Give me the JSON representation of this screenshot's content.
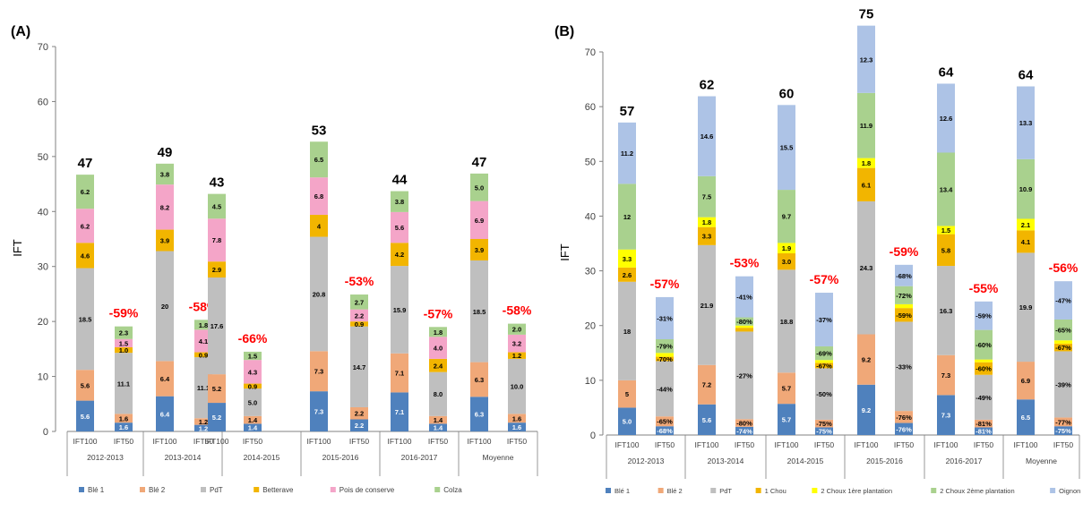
{
  "colors": {
    "Blé 1": "#4f81bd",
    "Blé 2": "#f0a878",
    "PdT": "#bfbfbf",
    "Betterave": "#f2b500",
    "1 Chou": "#f2b500",
    "Pois de conserve": "#f4a5c8",
    "2 Choux 1ère plantation": "#ffff00",
    "Colza": "#a9d18e",
    "2 Choux 2ème plantation": "#a9d18e",
    "Oignon": "#adc3e6",
    "reduction": "#ff0000"
  },
  "chart_data": [
    {
      "type": "bar",
      "stacked": true,
      "panel_label": "(A)",
      "ylabel": "IFT",
      "ylim": [
        0,
        70
      ],
      "yticks": [
        0,
        10,
        20,
        30,
        40,
        50,
        60,
        70
      ],
      "grid": false,
      "legend_position": "bottom",
      "groups": [
        "2012-2013",
        "2013-2014",
        "2014-2015",
        "2015-2016",
        "2016-2017",
        "Moyenne"
      ],
      "bar_types": [
        "IFT100",
        "IFT50"
      ],
      "series_names": [
        "Blé 1",
        "Blé 2",
        "PdT",
        "Betterave",
        "Pois de conserve",
        "Colza"
      ],
      "bars": [
        {
          "group": 0,
          "type": "IFT100",
          "values": [
            5.6,
            5.6,
            18.5,
            4.6,
            6.2,
            6.2
          ],
          "labels": [
            "5.6",
            "5.6",
            "18.5",
            "4.6",
            "6.2",
            "6.2"
          ],
          "total": "47"
        },
        {
          "group": 0,
          "type": "IFT50",
          "values": [
            1.6,
            1.6,
            11.1,
            1.0,
            1.5,
            2.3
          ],
          "labels": [
            "1.6",
            "1.6",
            "11.1",
            "1.0",
            "1.5",
            "2.3"
          ],
          "reduction": "-59%"
        },
        {
          "group": 1,
          "type": "IFT100",
          "values": [
            6.4,
            6.4,
            20,
            3.9,
            8.2,
            3.8
          ],
          "labels": [
            "6.4",
            "6.4",
            "20",
            "3.9",
            "8.2",
            "3.8"
          ],
          "total": "49"
        },
        {
          "group": 1,
          "type": "IFT50",
          "values": [
            1.2,
            1.2,
            11.1,
            0.9,
            4.1,
            1.8
          ],
          "labels": [
            "1.2",
            "1.2",
            "11.1",
            "0.9",
            "4.1",
            "1.8"
          ],
          "reduction": "-58%"
        },
        {
          "group": 2,
          "type": "IFT100",
          "values": [
            5.2,
            5.2,
            17.6,
            2.9,
            7.8,
            4.5
          ],
          "labels": [
            "5.2",
            "5.2",
            "17.6",
            "2.9",
            "7.8",
            "4.5"
          ],
          "total": "43"
        },
        {
          "group": 2,
          "type": "IFT50",
          "values": [
            1.4,
            1.4,
            5.0,
            0.9,
            4.3,
            1.5
          ],
          "labels": [
            "1.4",
            "1.4",
            "5.0",
            "0.9",
            "4.3",
            "1.5"
          ],
          "reduction": "-66%"
        },
        {
          "group": 3,
          "type": "IFT100",
          "values": [
            7.3,
            7.3,
            20.8,
            4,
            6.8,
            6.5
          ],
          "labels": [
            "7.3",
            "7.3",
            "20.8",
            "4",
            "6.8",
            "6.5"
          ],
          "total": "53"
        },
        {
          "group": 3,
          "type": "IFT50",
          "values": [
            2.2,
            2.2,
            14.7,
            0.9,
            2.2,
            2.7
          ],
          "labels": [
            "2.2",
            "2.2",
            "14.7",
            "0.9",
            "2.2",
            "2.7"
          ],
          "reduction": "-53%"
        },
        {
          "group": 4,
          "type": "IFT100",
          "values": [
            7.1,
            7.1,
            15.9,
            4.2,
            5.6,
            3.8
          ],
          "labels": [
            "7.1",
            "7.1",
            "15.9",
            "4.2",
            "5.6",
            "3.8"
          ],
          "total": "44"
        },
        {
          "group": 4,
          "type": "IFT50",
          "values": [
            1.4,
            1.4,
            8.0,
            2.4,
            4.0,
            1.8
          ],
          "labels": [
            "1.4",
            "1.4",
            "8.0",
            "2.4",
            "4.0",
            "1.8"
          ],
          "reduction": "-57%"
        },
        {
          "group": 5,
          "type": "IFT100",
          "values": [
            6.3,
            6.3,
            18.5,
            3.9,
            6.9,
            5.0
          ],
          "labels": [
            "6.3",
            "6.3",
            "18.5",
            "3.9",
            "6.9",
            "5.0"
          ],
          "total": "47"
        },
        {
          "group": 5,
          "type": "IFT50",
          "values": [
            1.6,
            1.6,
            10.0,
            1.2,
            3.2,
            2.0
          ],
          "labels": [
            "1.6",
            "1.6",
            "10.0",
            "1.2",
            "3.2",
            "2.0"
          ],
          "reduction": "-58%"
        }
      ]
    },
    {
      "type": "bar",
      "stacked": true,
      "panel_label": "(B)",
      "ylabel": "IFT",
      "ylim": [
        0,
        70
      ],
      "yticks": [
        0,
        10,
        20,
        30,
        40,
        50,
        60,
        70
      ],
      "grid": false,
      "legend_position": "bottom",
      "groups": [
        "2012-2013",
        "2013-2014",
        "2014-2015",
        "2015-2016",
        "2016-2017",
        "Moyenne"
      ],
      "bar_types": [
        "IFT100",
        "IFT50"
      ],
      "series_names": [
        "Blé 1",
        "Blé 2",
        "PdT",
        "1 Chou",
        "2 Choux 1ère plantation",
        "2 Choux 2ème plantation",
        "Oignon"
      ],
      "bars": [
        {
          "group": 0,
          "type": "IFT100",
          "values": [
            5.0,
            5,
            18,
            2.6,
            3.3,
            12,
            11.2
          ],
          "labels": [
            "5.0",
            "5",
            "18",
            "2.6",
            "3.3",
            "12",
            "11.2"
          ],
          "total": "57"
        },
        {
          "group": 0,
          "type": "IFT50",
          "values": [
            1.6,
            1.8,
            10.1,
            0.8,
            0.7,
            2.5,
            7.7
          ],
          "labels": [
            "-68%",
            "-65%",
            "-44%",
            "-70%",
            "",
            "-79%",
            "-31%"
          ],
          "reduction": "-57%"
        },
        {
          "group": 1,
          "type": "IFT100",
          "values": [
            5.6,
            7.2,
            21.9,
            3.3,
            1.8,
            7.5,
            14.6
          ],
          "labels": [
            "5.6",
            "7.2",
            "21.9",
            "3.3",
            "1.8",
            "7.5",
            "14.6"
          ],
          "total": "62"
        },
        {
          "group": 1,
          "type": "IFT50",
          "values": [
            1.5,
            1.4,
            16.0,
            0.7,
            0.4,
            1.5,
            7.5
          ],
          "labels": [
            "-74%",
            "-80%",
            "-27%",
            "",
            "",
            "-80%",
            "-41%"
          ],
          "reduction": "-53%"
        },
        {
          "group": 2,
          "type": "IFT100",
          "values": [
            5.7,
            5.7,
            18.8,
            3.0,
            1.9,
            9.7,
            15.5
          ],
          "labels": [
            "5.7",
            "5.7",
            "18.8",
            "3.0",
            "1.9",
            "9.7",
            "15.5"
          ],
          "total": "60"
        },
        {
          "group": 2,
          "type": "IFT50",
          "values": [
            1.4,
            1.4,
            9.4,
            1.0,
            0.5,
            2.5,
            9.8
          ],
          "labels": [
            "-75%",
            "-75%",
            "-50%",
            "-67%",
            "",
            "-69%",
            "-37%"
          ],
          "reduction": "-57%"
        },
        {
          "group": 3,
          "type": "IFT100",
          "values": [
            9.2,
            9.2,
            24.3,
            6.1,
            1.8,
            11.9,
            12.3
          ],
          "labels": [
            "9.2",
            "9.2",
            "24.3",
            "6.1",
            "1.8",
            "11.9",
            "12.3"
          ],
          "total": "75"
        },
        {
          "group": 3,
          "type": "IFT50",
          "values": [
            2.2,
            2.2,
            16.3,
            2.5,
            0.7,
            3.3,
            3.9
          ],
          "labels": [
            "-76%",
            "-76%",
            "-33%",
            "-59%",
            "",
            "-72%",
            "-68%"
          ],
          "reduction": "-59%"
        },
        {
          "group": 4,
          "type": "IFT100",
          "values": [
            7.3,
            7.3,
            16.3,
            5.8,
            1.5,
            13.4,
            12.6
          ],
          "labels": [
            "7.3",
            "7.3",
            "16.3",
            "5.8",
            "1.5",
            "13.4",
            "12.6"
          ],
          "total": "64"
        },
        {
          "group": 4,
          "type": "IFT50",
          "values": [
            1.4,
            1.4,
            8.2,
            2.3,
            0.5,
            5.4,
            5.2
          ],
          "labels": [
            "-81%",
            "-81%",
            "-49%",
            "-60%",
            "",
            "-60%",
            "-59%"
          ],
          "reduction": "-55%"
        },
        {
          "group": 5,
          "type": "IFT100",
          "values": [
            6.5,
            6.9,
            19.9,
            4.1,
            2.1,
            10.9,
            13.3
          ],
          "labels": [
            "6.5",
            "6.9",
            "19.9",
            "4.1",
            "2.1",
            "10.9",
            "13.3"
          ],
          "total": "64"
        },
        {
          "group": 5,
          "type": "IFT50",
          "values": [
            1.6,
            1.6,
            12.1,
            1.4,
            0.6,
            3.8,
            7.0
          ],
          "labels": [
            "-75%",
            "-77%",
            "-39%",
            "-67%",
            "",
            "-65%",
            "-47%"
          ],
          "reduction": "-56%"
        }
      ]
    }
  ]
}
